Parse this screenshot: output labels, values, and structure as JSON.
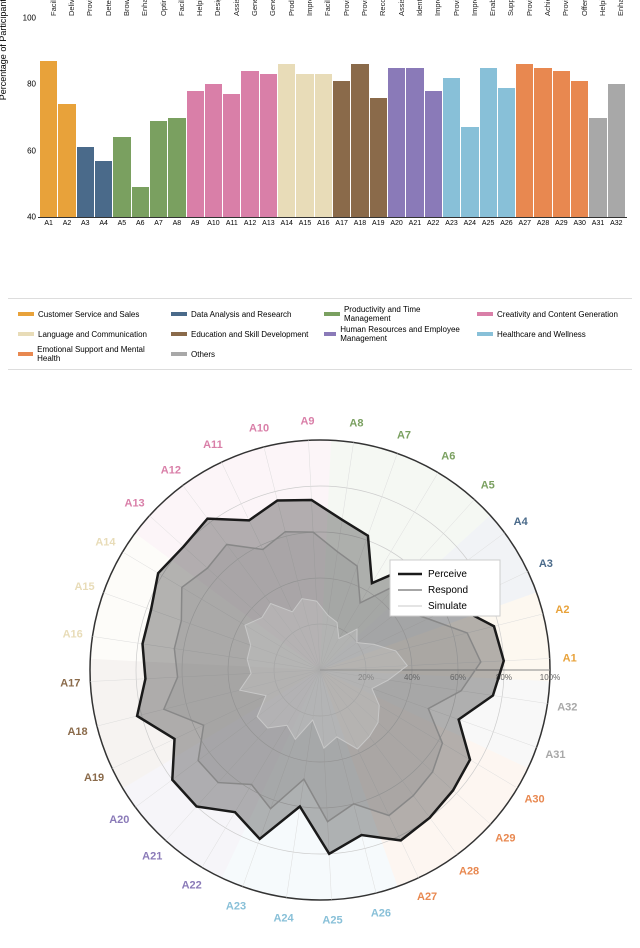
{
  "categories": [
    {
      "key": "customer",
      "label": "Customer Service and Sales",
      "color": "#e8a23a"
    },
    {
      "key": "data",
      "label": "Data Analysis and Research",
      "color": "#4a6a8a"
    },
    {
      "key": "productivity",
      "label": "Productivity and Time Management",
      "color": "#7aa060"
    },
    {
      "key": "creativity",
      "label": "Creativity and Content Generation",
      "color": "#d97fa8"
    },
    {
      "key": "language",
      "label": "Language and Communication",
      "color": "#e8dcb8"
    },
    {
      "key": "education",
      "label": "Education and Skill Development",
      "color": "#8a6a4a"
    },
    {
      "key": "hr",
      "label": "Human Resources and Employee Management",
      "color": "#8a7ab8"
    },
    {
      "key": "healthcare",
      "label": "Healthcare and Wellness",
      "color": "#88c0d8"
    },
    {
      "key": "emotional",
      "label": "Emotional Support and Mental Health",
      "color": "#e88850"
    },
    {
      "key": "others",
      "label": "Others",
      "color": "#a8a8a8"
    }
  ],
  "bar_chart": {
    "ylabel": "Percentage of Participants",
    "ylim": [
      40,
      100
    ],
    "yticks": [
      40,
      60,
      80,
      100
    ],
    "items": [
      {
        "code": "A1",
        "desc": "Facilitating customer service interactions",
        "value": 87,
        "cat": "customer"
      },
      {
        "code": "A2",
        "desc": "Delivering personalized product recommendations",
        "value": 74,
        "cat": "customer"
      },
      {
        "code": "A3",
        "desc": "Providing valuable insights from research data",
        "value": 61,
        "cat": "data"
      },
      {
        "code": "A4",
        "desc": "Detecting and analyzing patterns in data",
        "value": 57,
        "cat": "data"
      },
      {
        "code": "A5",
        "desc": "Browsing and retrieving content",
        "value": 64,
        "cat": "productivity"
      },
      {
        "code": "A6",
        "desc": "Enhancing coding accuracy and speed",
        "value": 49,
        "cat": "productivity"
      },
      {
        "code": "A7",
        "desc": "Optimizing time management and scheduling",
        "value": 69,
        "cat": "productivity"
      },
      {
        "code": "A8",
        "desc": "Facilitating successful project management and tracking",
        "value": 70,
        "cat": "productivity"
      },
      {
        "code": "A9",
        "desc": "Helping brainstorm project ideas",
        "value": 78,
        "cat": "creativity"
      },
      {
        "code": "A10",
        "desc": "Designing and generating marketing campaigns",
        "value": 80,
        "cat": "creativity"
      },
      {
        "code": "A11",
        "desc": "Assisting with the creation of presentations",
        "value": 77,
        "cat": "creativity"
      },
      {
        "code": "A12",
        "desc": "Generating personalized stories and narratives",
        "value": 84,
        "cat": "creativity"
      },
      {
        "code": "A13",
        "desc": "Generating creative content for various purposes",
        "value": 83,
        "cat": "creativity"
      },
      {
        "code": "A14",
        "desc": "Producing personalized e-mail messages and responses",
        "value": 86,
        "cat": "language"
      },
      {
        "code": "A15",
        "desc": "Improving writing quality and clarity",
        "value": 83,
        "cat": "language"
      },
      {
        "code": "A16",
        "desc": "Facilitating language translation and learning",
        "value": 83,
        "cat": "language"
      },
      {
        "code": "A17",
        "desc": "Providing successful learning and skill development",
        "value": 81,
        "cat": "education"
      },
      {
        "code": "A18",
        "desc": "Providing effective coaching and mentorship",
        "value": 86,
        "cat": "education"
      },
      {
        "code": "A19",
        "desc": "Recommending personalized and effective education trainings",
        "value": 76,
        "cat": "education"
      },
      {
        "code": "A20",
        "desc": "Assisting with employee onboarding",
        "value": 85,
        "cat": "hr"
      },
      {
        "code": "A21",
        "desc": "Identifying patterns in employee feedback and sentiment",
        "value": 85,
        "cat": "hr"
      },
      {
        "code": "A22",
        "desc": "Improving with the writing of performance reviews",
        "value": 78,
        "cat": "hr"
      },
      {
        "code": "A23",
        "desc": "Providing efficient and effective healthcare support",
        "value": 82,
        "cat": "healthcare"
      },
      {
        "code": "A24",
        "desc": "Improving medical diagnosis accuracy and effectiveness",
        "value": 67,
        "cat": "healthcare"
      },
      {
        "code": "A25",
        "desc": "Enabling successful mental health management and therapy",
        "value": 85,
        "cat": "healthcare"
      },
      {
        "code": "A26",
        "desc": "Supporting computer ergonomics and healthy breaks",
        "value": 79,
        "cat": "healthcare"
      },
      {
        "code": "A27",
        "desc": "Providing empathetic emotional support and assistance",
        "value": 86,
        "cat": "emotional"
      },
      {
        "code": "A28",
        "desc": "Achieving optimal personal health and wellness",
        "value": 85,
        "cat": "emotional"
      },
      {
        "code": "A29",
        "desc": "Providing critical crisis intervention and support",
        "value": 84,
        "cat": "emotional"
      },
      {
        "code": "A30",
        "desc": "Offering effective companionship and emotional support",
        "value": 81,
        "cat": "emotional"
      },
      {
        "code": "A31",
        "desc": "Helping complete a computer game",
        "value": 70,
        "cat": "others"
      },
      {
        "code": "A32",
        "desc": "Enhancing social robotics capabilities and outcomes",
        "value": 80,
        "cat": "others"
      }
    ]
  },
  "radar": {
    "rings": [
      20,
      40,
      60,
      80,
      100
    ],
    "ring_labels": [
      "20%",
      "40%",
      "60%",
      "80%",
      "100%"
    ],
    "series": [
      {
        "name": "Perceive",
        "stroke": "#1a1a1a",
        "fill": "rgba(40,40,40,0.35)",
        "width": 2.5,
        "values": [
          80,
          78,
          65,
          58,
          62,
          44,
          62,
          66,
          74,
          76,
          72,
          82,
          80,
          82,
          78,
          78,
          76,
          82,
          70,
          80,
          80,
          72,
          78,
          60,
          80,
          74,
          82,
          80,
          78,
          76,
          64,
          76
        ]
      },
      {
        "name": "Respond",
        "stroke": "#888888",
        "fill": "rgba(150,150,150,0.30)",
        "width": 1.5,
        "values": [
          70,
          66,
          52,
          44,
          50,
          34,
          48,
          52,
          60,
          62,
          58,
          68,
          66,
          70,
          64,
          64,
          62,
          70,
          56,
          66,
          66,
          58,
          64,
          48,
          66,
          60,
          70,
          68,
          66,
          62,
          50,
          62
        ]
      },
      {
        "name": "Simulate",
        "stroke": "#c8c8c8",
        "fill": "rgba(210,210,210,0.30)",
        "width": 1,
        "values": [
          38,
          34,
          26,
          20,
          24,
          16,
          22,
          24,
          30,
          32,
          28,
          36,
          34,
          38,
          32,
          32,
          30,
          36,
          26,
          34,
          34,
          28,
          32,
          22,
          34,
          30,
          38,
          36,
          34,
          30,
          24,
          30
        ]
      }
    ]
  }
}
